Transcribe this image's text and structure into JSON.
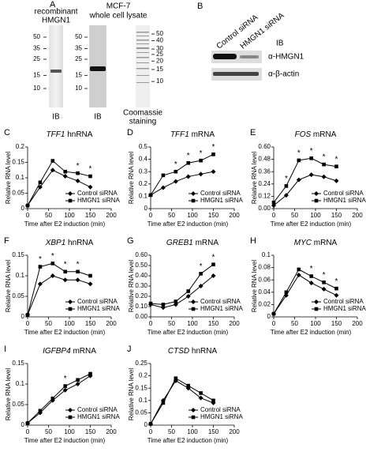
{
  "figure": {
    "panel_a": {
      "label": "A",
      "lane1": {
        "title": [
          "recombinant",
          "HMGN1"
        ],
        "markers": [
          50,
          35,
          25,
          15,
          10
        ],
        "caption": [
          "IB"
        ]
      },
      "lane2": {
        "title": [
          "MCF-7",
          "whole cell lysate"
        ],
        "markers": [
          50,
          35,
          25,
          15,
          10
        ],
        "caption": [
          "IB"
        ]
      },
      "lane3": {
        "markers": [
          50,
          40,
          30,
          25,
          20,
          15,
          10
        ],
        "caption": [
          "Coomassie",
          "staining"
        ]
      }
    },
    "panel_b": {
      "label": "B",
      "lanes": [
        "Control siRNA",
        "HMGN1 siRNA"
      ],
      "method": "IB",
      "rows": [
        "α-HMGN1",
        "α-β-actin"
      ]
    }
  },
  "chart_data": [
    {
      "type": "line",
      "label": "C",
      "title": [
        "TFF1",
        "hnRNA"
      ],
      "ylabel": "Relative RNA level",
      "xlabel": "Time after E2 induction (min)",
      "x": [
        0,
        30,
        60,
        90,
        120,
        150
      ],
      "xlim": [
        0,
        200
      ],
      "xticks": [
        0,
        50,
        100,
        150,
        200
      ],
      "ylim": [
        0,
        0.2
      ],
      "yticks": [
        0,
        0.05,
        0.1,
        0.15,
        0.2
      ],
      "legend": "lower right",
      "series": [
        {
          "name": "Control siRNA",
          "color": "#000000",
          "marker": "diamond",
          "values": [
            0.01,
            0.07,
            0.125,
            0.105,
            0.09,
            0.07
          ]
        },
        {
          "name": "HMGN1 siRNA",
          "color": "#000000",
          "marker": "square",
          "values": [
            0.01,
            0.085,
            0.155,
            0.12,
            0.115,
            0.105
          ]
        }
      ],
      "annotations": [
        {
          "text": "*",
          "x": 120
        },
        {
          "text": "*",
          "x": 150
        }
      ]
    },
    {
      "type": "line",
      "label": "D",
      "title": [
        "TFF1",
        "mRNA"
      ],
      "ylabel": "Relative RNA level",
      "xlabel": "Time after E2 induction (min)",
      "x": [
        0,
        30,
        60,
        90,
        120,
        150
      ],
      "xlim": [
        0,
        200
      ],
      "xticks": [
        0,
        50,
        100,
        150,
        200
      ],
      "ylim": [
        0,
        0.5
      ],
      "yticks": [
        0,
        0.1,
        0.2,
        0.3,
        0.4,
        0.5
      ],
      "legend": "lower right",
      "series": [
        {
          "name": "Control siRNA",
          "color": "#000000",
          "marker": "diamond",
          "values": [
            0.11,
            0.17,
            0.22,
            0.26,
            0.28,
            0.3
          ]
        },
        {
          "name": "HMGN1 siRNA",
          "color": "#000000",
          "marker": "square",
          "values": [
            0.11,
            0.27,
            0.3,
            0.37,
            0.39,
            0.44
          ]
        }
      ],
      "annotations": [
        {
          "text": "*",
          "x": 60
        },
        {
          "text": "*",
          "x": 90
        },
        {
          "text": "*",
          "x": 120
        },
        {
          "text": "*",
          "x": 150
        }
      ]
    },
    {
      "type": "line",
      "label": "E",
      "title": [
        "FOS",
        "mRNA"
      ],
      "ylabel": "Relative RNA level",
      "xlabel": "Time after E2 induction (min)",
      "x": [
        0,
        30,
        60,
        90,
        120,
        150
      ],
      "xlim": [
        0,
        200
      ],
      "xticks": [
        0,
        50,
        100,
        150,
        200
      ],
      "ylim": [
        0,
        0.6
      ],
      "yticks": [
        {
          "value": 0,
          "label": "0.00"
        },
        0.12,
        0.24,
        0.36,
        0.48,
        {
          "value": 0.6,
          "label": "0.60"
        }
      ],
      "legend": "lower right",
      "series": [
        {
          "name": "Control siRNA",
          "color": "#000000",
          "marker": "diamond",
          "values": [
            0.03,
            0.13,
            0.28,
            0.33,
            0.31,
            0.27
          ]
        },
        {
          "name": "HMGN1 siRNA",
          "color": "#000000",
          "marker": "square",
          "values": [
            0.06,
            0.22,
            0.47,
            0.49,
            0.43,
            0.41
          ]
        }
      ],
      "annotations": [
        {
          "text": "*",
          "x": 30
        },
        {
          "text": "*",
          "x": 60
        },
        {
          "text": "*",
          "x": 90
        },
        {
          "text": "*",
          "x": 120
        },
        {
          "text": "*",
          "x": 150
        }
      ]
    },
    {
      "type": "line",
      "label": "F",
      "title": [
        "XBP1",
        "hnRNA"
      ],
      "ylabel": "Relative RNA level",
      "xlabel": "Time after E2 induction (min)",
      "x": [
        0,
        30,
        60,
        90,
        120,
        150
      ],
      "xlim": [
        0,
        200
      ],
      "xticks": [
        0,
        50,
        100,
        150,
        200
      ],
      "ylim": [
        0,
        0.15
      ],
      "yticks": [
        0,
        0.05,
        0.1,
        0.15
      ],
      "legend": "lower right",
      "series": [
        {
          "name": "Control siRNA",
          "color": "#000000",
          "marker": "diamond",
          "values": [
            0.005,
            0.08,
            0.1,
            0.09,
            0.09,
            0.08
          ]
        },
        {
          "name": "HMGN1 siRNA",
          "color": "#000000",
          "marker": "square",
          "values": [
            0.005,
            0.122,
            0.13,
            0.11,
            0.11,
            0.1
          ]
        }
      ],
      "annotations": [
        {
          "text": "*",
          "x": 30
        },
        {
          "text": "*",
          "x": 60
        },
        {
          "text": "*",
          "x": 90
        },
        {
          "text": "*",
          "x": 120
        }
      ]
    },
    {
      "type": "line",
      "label": "G",
      "title": [
        "GREB1",
        "mRNA"
      ],
      "ylabel": "Relative RNA level",
      "xlabel": "Time after E2 induction (min)",
      "x": [
        0,
        30,
        60,
        90,
        120,
        150
      ],
      "xlim": [
        0,
        200
      ],
      "xticks": [
        0,
        50,
        100,
        150,
        200
      ],
      "ylim": [
        0,
        0.6
      ],
      "yticks": [
        {
          "value": 0,
          "label": "0.00"
        },
        {
          "value": 0.1,
          "label": "0.10"
        },
        {
          "value": 0.2,
          "label": "0.20"
        },
        {
          "value": 0.3,
          "label": "0.30"
        },
        {
          "value": 0.4,
          "label": "0.40"
        },
        {
          "value": 0.5,
          "label": "0.50"
        },
        {
          "value": 0.6,
          "label": "0.60"
        }
      ],
      "legend": "lower right",
      "series": [
        {
          "name": "Control siRNA",
          "color": "#000000",
          "marker": "diamond",
          "values": [
            0.12,
            0.09,
            0.12,
            0.2,
            0.3,
            0.4
          ]
        },
        {
          "name": "HMGN1 siRNA",
          "color": "#000000",
          "marker": "square",
          "values": [
            0.13,
            0.12,
            0.15,
            0.25,
            0.42,
            0.51
          ]
        }
      ],
      "annotations": [
        {
          "text": "*",
          "x": 120
        },
        {
          "text": "*",
          "x": 150
        }
      ]
    },
    {
      "type": "line",
      "label": "H",
      "title": [
        "MYC",
        "mRNA"
      ],
      "ylabel": "Relative RNA level",
      "xlabel": "Time after E2 induction (min)",
      "x": [
        0,
        30,
        60,
        90,
        120,
        150
      ],
      "xlim": [
        0,
        200
      ],
      "xticks": [
        0,
        50,
        100,
        150,
        200
      ],
      "ylim": [
        0,
        0.1
      ],
      "yticks": [
        0,
        0.02,
        0.04,
        0.06,
        0.08,
        0.1
      ],
      "legend": "lower right",
      "series": [
        {
          "name": "Control siRNA",
          "color": "#000000",
          "marker": "diamond",
          "values": [
            0.005,
            0.035,
            0.068,
            0.055,
            0.045,
            0.035
          ]
        },
        {
          "name": "HMGN1 siRNA",
          "color": "#000000",
          "marker": "square",
          "values": [
            0.005,
            0.04,
            0.077,
            0.066,
            0.056,
            0.046
          ]
        }
      ],
      "annotations": [
        {
          "text": "*",
          "x": 90
        },
        {
          "text": "*",
          "x": 120
        },
        {
          "text": "*",
          "x": 150
        }
      ]
    },
    {
      "type": "line",
      "label": "I",
      "title": [
        "IGFBP4",
        "mRNA"
      ],
      "ylabel": "Relative RNA level",
      "xlabel": "Time after E2 induction (min)",
      "x": [
        0,
        30,
        60,
        90,
        120,
        150
      ],
      "xlim": [
        0,
        200
      ],
      "xticks": [
        0,
        50,
        100,
        150,
        200
      ],
      "ylim": [
        0,
        0.15
      ],
      "yticks": [
        0,
        0.05,
        0.1,
        0.15
      ],
      "legend": "lower right",
      "series": [
        {
          "name": "Control siRNA",
          "color": "#000000",
          "marker": "diamond",
          "values": [
            0.005,
            0.03,
            0.06,
            0.085,
            0.1,
            0.12
          ]
        },
        {
          "name": "HMGN1 siRNA",
          "color": "#000000",
          "marker": "square",
          "values": [
            0.005,
            0.035,
            0.065,
            0.095,
            0.11,
            0.125
          ]
        }
      ],
      "annotations": [
        {
          "text": "*",
          "x": 90
        }
      ]
    },
    {
      "type": "line",
      "label": "J",
      "title": [
        "CTSD",
        "hnRNA"
      ],
      "ylabel": "Relative RNA level",
      "xlabel": "Time after E2 induction (min)",
      "x": [
        0,
        30,
        60,
        90,
        120,
        150
      ],
      "xlim": [
        0,
        200
      ],
      "xticks": [
        0,
        50,
        100,
        150,
        200
      ],
      "ylim": [
        0,
        0.25
      ],
      "yticks": [
        0,
        0.05,
        0.1,
        0.15,
        0.2,
        0.25
      ],
      "legend": "lower right",
      "series": [
        {
          "name": "Control siRNA",
          "color": "#000000",
          "marker": "diamond",
          "values": [
            0.005,
            0.1,
            0.18,
            0.15,
            0.11,
            0.09
          ]
        },
        {
          "name": "HMGN1 siRNA",
          "color": "#000000",
          "marker": "square",
          "values": [
            0.005,
            0.09,
            0.19,
            0.16,
            0.13,
            0.1
          ]
        }
      ],
      "annotations": []
    }
  ]
}
